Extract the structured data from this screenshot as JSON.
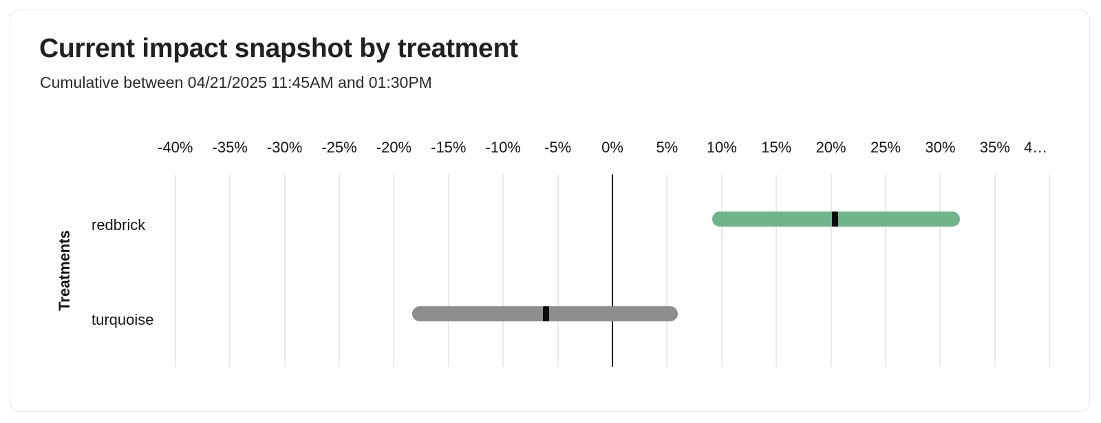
{
  "chart_data": {
    "type": "bar",
    "variant": "horizontal_interval_range",
    "title": "Current impact snapshot by treatment",
    "subtitle": "Cumulative between 04/21/2025 11:45AM and 01:30PM",
    "xlabel": "",
    "ylabel": "Treatments",
    "x_unit": "percent",
    "xlim": [
      -40,
      40
    ],
    "x_tick_step": 5,
    "x_tick_labels": [
      "-40%",
      "-35%",
      "-30%",
      "-25%",
      "-20%",
      "-15%",
      "-10%",
      "-5%",
      "0%",
      "5%",
      "10%",
      "15%",
      "20%",
      "25%",
      "30%",
      "35%",
      "4…"
    ],
    "grid": true,
    "zero_line": true,
    "legend": "none",
    "categories": [
      "redbrick",
      "turquoise"
    ],
    "rows": [
      {
        "name": "redbrick",
        "interval_low_pct": 9.1,
        "interval_high_pct": 31.8,
        "point_estimate_pct": 20.4,
        "color": "#6FB48B"
      },
      {
        "name": "turquoise",
        "interval_low_pct": -18.3,
        "interval_high_pct": 6.0,
        "point_estimate_pct": -6.1,
        "color": "#8E8E8E"
      }
    ],
    "marker_color": "#0b0b0b",
    "gridline_color": "#e9e9e9",
    "zero_line_color": "#1a1a1a"
  }
}
